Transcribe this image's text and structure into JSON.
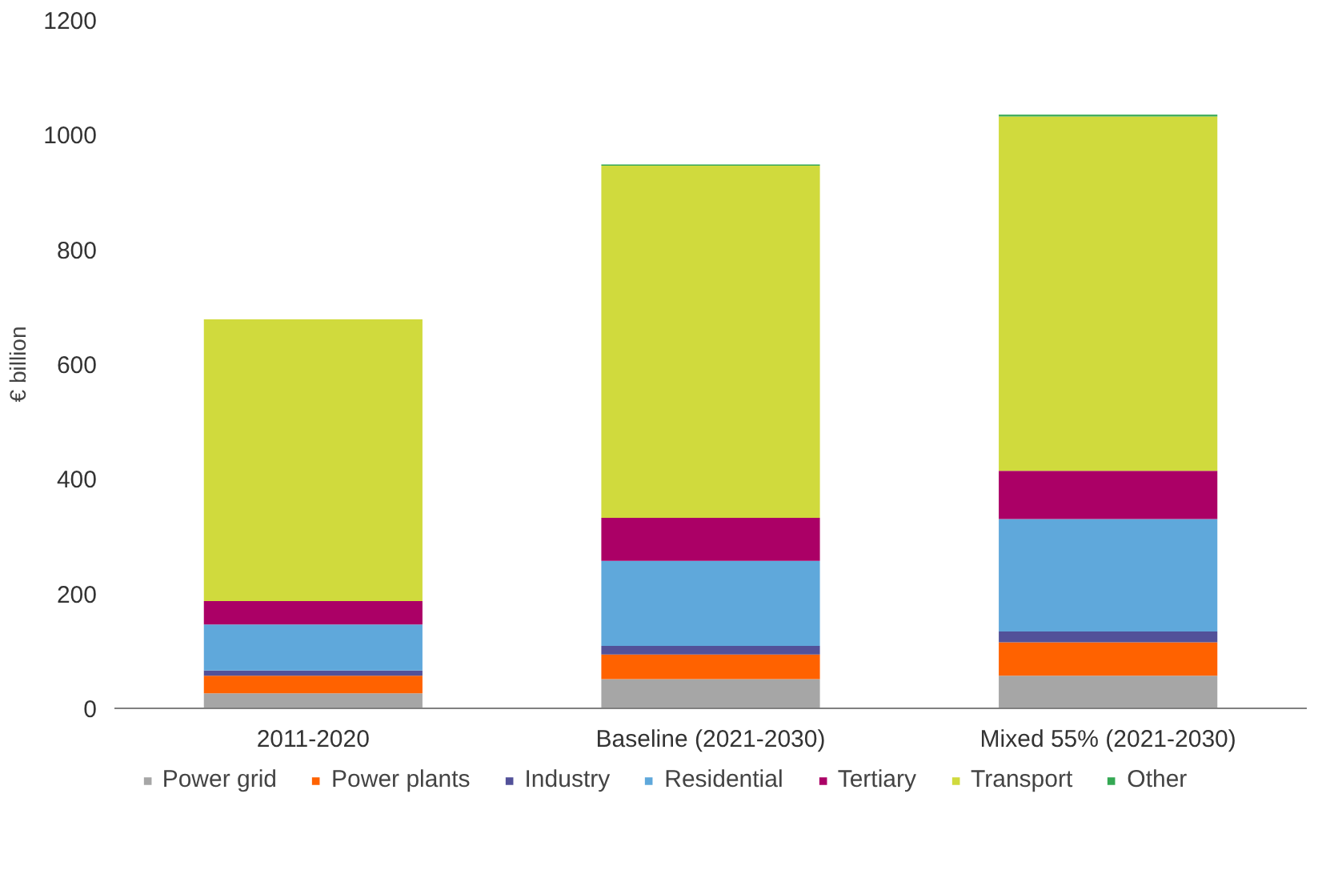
{
  "chart_data": {
    "type": "bar",
    "stacked": true,
    "ylabel": "€ billion",
    "categories": [
      "2011-2020",
      "Baseline (2021-2030)",
      "Mixed 55% (2021-2030)"
    ],
    "series": [
      {
        "name": "Power grid",
        "color": "#a6a6a6",
        "values": [
          26,
          51,
          57
        ]
      },
      {
        "name": "Power plants",
        "color": "#ff6200",
        "values": [
          31,
          43,
          58
        ]
      },
      {
        "name": "Industry",
        "color": "#525199",
        "values": [
          9,
          15,
          19
        ]
      },
      {
        "name": "Residential",
        "color": "#5fa8db",
        "values": [
          80,
          148,
          196
        ]
      },
      {
        "name": "Tertiary",
        "color": "#ab0066",
        "values": [
          41,
          75,
          84
        ]
      },
      {
        "name": "Transport",
        "color": "#d0da3d",
        "values": [
          491,
          614,
          618
        ]
      },
      {
        "name": "Other",
        "color": "#34a853",
        "values": [
          0,
          2,
          3
        ]
      }
    ],
    "ylim": [
      0,
      1200
    ],
    "yticks": [
      0,
      200,
      400,
      600,
      800,
      1000,
      1200
    ],
    "grid": false,
    "legend": "bottom"
  }
}
